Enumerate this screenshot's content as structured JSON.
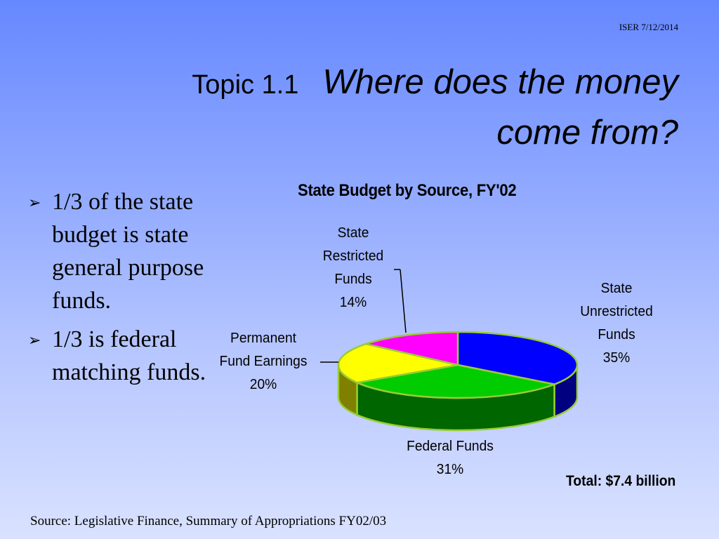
{
  "header": {
    "date_text": "ISER 7/12/2014"
  },
  "title": {
    "topic": "Topic 1.1",
    "question_line1": "Where does the money",
    "question_line2": "come from?"
  },
  "bullets": [
    {
      "text": "1/3 of the state budget is state general purpose funds."
    },
    {
      "text": "1/3 is federal matching funds."
    }
  ],
  "chart_data": {
    "type": "pie",
    "title": "State Budget by Source, FY'02",
    "slices": [
      {
        "label": "State Unrestricted Funds",
        "value": 35,
        "value_label": "35%",
        "color": "#0000ff",
        "side_color": "#000080"
      },
      {
        "label": "Federal Funds",
        "value": 31,
        "value_label": "31%",
        "color": "#00cc00",
        "side_color": "#006600"
      },
      {
        "label": "Permanent Fund Earnings",
        "value": 20,
        "value_label": "20%",
        "color": "#ffff00",
        "side_color": "#808000"
      },
      {
        "label": "State Restricted Funds",
        "value": 14,
        "value_label": "14%",
        "color": "#ff00ff",
        "side_color": "#800080"
      }
    ],
    "total_text": "Total: $7.4 billion",
    "outline_color": "#99cc33"
  },
  "labels": {
    "unrestricted": [
      "State",
      "Unrestricted",
      "Funds",
      "35%"
    ],
    "federal": [
      "Federal Funds",
      "31%"
    ],
    "permanent": [
      "Permanent",
      "Fund Earnings",
      "20%"
    ],
    "restricted": [
      "State",
      "Restricted",
      "Funds",
      "14%"
    ]
  },
  "footer": {
    "source": "Source: Legislative Finance, Summary of Appropriations FY02/03"
  }
}
